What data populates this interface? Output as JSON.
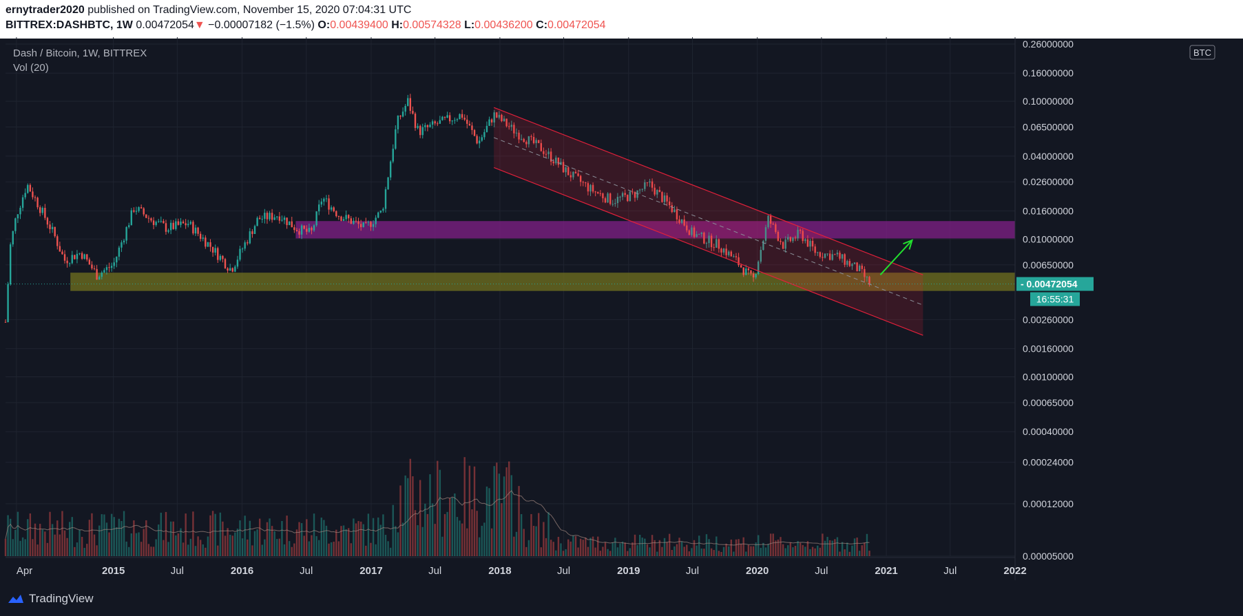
{
  "header": {
    "author": "ernytrader2020",
    "published_text": "published on TradingView.com, November 15, 2020 07:04:31 UTC",
    "symbol": "BITTREX:DASHBTC, 1W",
    "last_price": "0.00472054",
    "change": "−0.00007182 (−1.5%)",
    "ohlc": {
      "o_label": "O:",
      "o": "0.00439400",
      "h_label": "H:",
      "h": "0.00574328",
      "l_label": "L:",
      "l": "0.00436200",
      "c_label": "C:",
      "c": "0.00472054"
    }
  },
  "legend": {
    "title": "Dash / Bitcoin, 1W, BITTREX",
    "volume": "Vol (20)"
  },
  "price_axis": {
    "currency": "BTC",
    "current_price_label": "0.00472054",
    "countdown": "16:55:31",
    "ticks": [
      "0.26000000",
      "0.16000000",
      "0.10000000",
      "0.06500000",
      "0.04000000",
      "0.02600000",
      "0.01600000",
      "0.01000000",
      "0.00650000",
      "0.00260000",
      "0.00160000",
      "0.00100000",
      "0.00065000",
      "0.00040000",
      "0.00024000",
      "0.00012000",
      "0.00005000"
    ]
  },
  "time_axis": {
    "labels": [
      "Apr",
      "2015",
      "Jul",
      "2016",
      "Jul",
      "2017",
      "Jul",
      "2018",
      "Jul",
      "2019",
      "Jul",
      "2020",
      "Jul",
      "2021",
      "Jul",
      "2022"
    ],
    "bold": [
      false,
      true,
      false,
      true,
      false,
      true,
      false,
      true,
      false,
      true,
      false,
      true,
      false,
      true,
      false,
      true
    ]
  },
  "footer": {
    "brand": "TradingView"
  },
  "colors": {
    "background": "#131722",
    "up": "#26a69a",
    "down": "#ef5350",
    "support_zone": "#6b6b1f",
    "resistance_zone": "#7b1f82",
    "channel": "#e0203a",
    "arrow": "#22e02e",
    "price_tag": "#26a69a"
  },
  "chart_data": {
    "type": "candlestick",
    "title": "Dash / Bitcoin, 1W, BITTREX",
    "price_scale": "log",
    "y_unit": "BTC",
    "x_range": [
      "2014-03",
      "2022-01"
    ],
    "y_range": [
      5e-05,
      0.26
    ],
    "price_path": [
      [
        "2014-03-01",
        0.0025
      ],
      [
        "2014-03-15",
        0.009
      ],
      [
        "2014-04-01",
        0.015
      ],
      [
        "2014-05-01",
        0.025
      ],
      [
        "2014-06-01",
        0.018
      ],
      [
        "2014-07-15",
        0.011
      ],
      [
        "2014-08-15",
        0.007
      ],
      [
        "2014-10-01",
        0.008
      ],
      [
        "2014-11-15",
        0.0055
      ],
      [
        "2015-01-01",
        0.0065
      ],
      [
        "2015-03-01",
        0.017
      ],
      [
        "2015-04-15",
        0.014
      ],
      [
        "2015-06-01",
        0.012
      ],
      [
        "2015-08-01",
        0.013
      ],
      [
        "2015-10-01",
        0.009
      ],
      [
        "2015-12-01",
        0.006
      ],
      [
        "2016-02-15",
        0.014
      ],
      [
        "2016-04-15",
        0.015
      ],
      [
        "2016-06-01",
        0.012
      ],
      [
        "2016-07-15",
        0.011
      ],
      [
        "2016-08-15",
        0.02
      ],
      [
        "2016-10-01",
        0.015
      ],
      [
        "2016-12-15",
        0.012
      ],
      [
        "2017-02-01",
        0.016
      ],
      [
        "2017-03-15",
        0.07
      ],
      [
        "2017-04-15",
        0.1
      ],
      [
        "2017-05-15",
        0.06
      ],
      [
        "2017-07-15",
        0.07
      ],
      [
        "2017-09-15",
        0.08
      ],
      [
        "2017-11-01",
        0.05
      ],
      [
        "2017-12-15",
        0.08
      ],
      [
        "2018-02-15",
        0.06
      ],
      [
        "2018-05-01",
        0.045
      ],
      [
        "2018-07-15",
        0.03
      ],
      [
        "2018-09-15",
        0.023
      ],
      [
        "2018-11-15",
        0.019
      ],
      [
        "2019-01-15",
        0.021
      ],
      [
        "2019-03-01",
        0.025
      ],
      [
        "2019-05-01",
        0.017
      ],
      [
        "2019-07-01",
        0.011
      ],
      [
        "2019-09-15",
        0.009
      ],
      [
        "2019-11-01",
        0.007
      ],
      [
        "2019-12-20",
        0.005
      ],
      [
        "2020-02-01",
        0.014
      ],
      [
        "2020-03-15",
        0.009
      ],
      [
        "2020-05-01",
        0.011
      ],
      [
        "2020-06-15",
        0.008
      ],
      [
        "2020-08-15",
        0.0075
      ],
      [
        "2020-10-15",
        0.006
      ],
      [
        "2020-11-15",
        0.00472
      ]
    ],
    "volume_ma_length": 20,
    "drawings": {
      "support_zone": [
        0.0042,
        0.0057
      ],
      "resistance_zone": [
        0.0101,
        0.0135
      ],
      "descending_channel": {
        "start": "2017-12-15",
        "end": "2021-04-15",
        "upper": [
          0.09,
          0.0055
        ],
        "lower": [
          0.033,
          0.002
        ]
      },
      "breakout_arrow": {
        "from": [
          "2020-12-15",
          0.0055
        ],
        "to": [
          "2021-03-15",
          0.0098
        ]
      }
    }
  }
}
